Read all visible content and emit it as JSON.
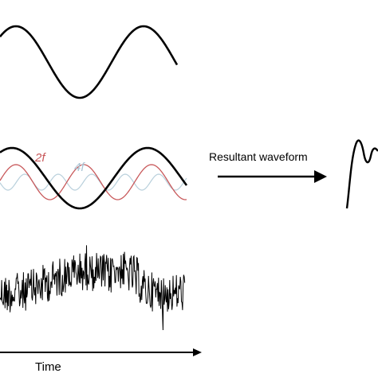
{
  "labels": {
    "second_harmonic": "2f",
    "fourth_harmonic": "4f",
    "arrow_label": "Resultant waveform",
    "time_axis": "Time"
  }
}
